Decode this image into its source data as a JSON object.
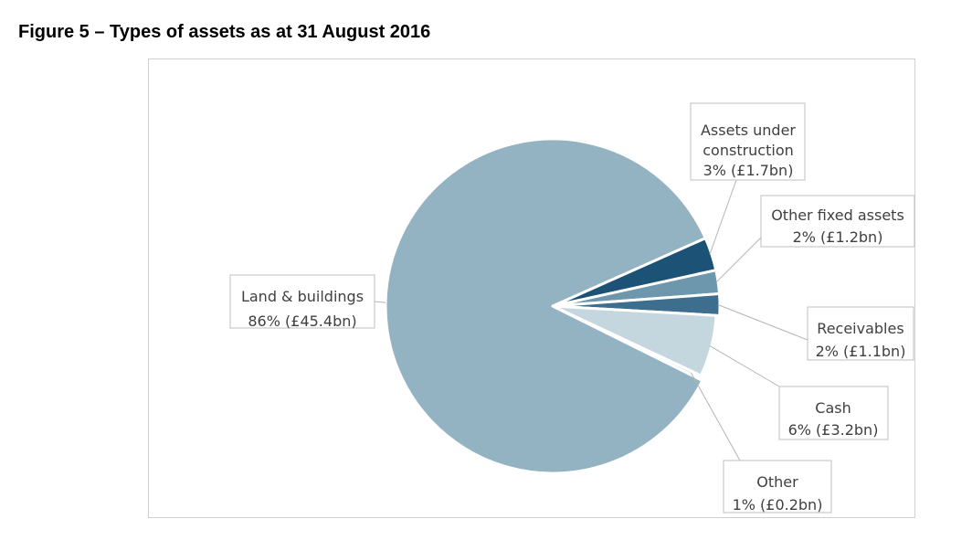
{
  "figure_title": "Figure 5 – Types of assets as at 31 August 2016",
  "chart_data": {
    "type": "pie",
    "title": "",
    "slices": [
      {
        "name": "Assets under construction",
        "percent": 3,
        "label_value": "3% (£1.7bn)",
        "value_bn": 1.7,
        "color": "#1b5276"
      },
      {
        "name": "Other fixed assets",
        "percent": 2,
        "label_value": "2% (£1.2bn)",
        "value_bn": 1.2,
        "color": "#6d97ac"
      },
      {
        "name": "Receivables",
        "percent": 2,
        "label_value": "2% (£1.1bn)",
        "value_bn": 1.1,
        "color": "#3e6e8e"
      },
      {
        "name": "Cash",
        "percent": 6,
        "label_value": "6% (£3.2bn)",
        "value_bn": 3.2,
        "color": "#c4d6de"
      },
      {
        "name": "Other",
        "percent": 1,
        "label_value": "1% (£0.2bn)",
        "value_bn": 0.2,
        "color": "#dde8ed"
      },
      {
        "name": "Land & buildings",
        "percent": 86,
        "label_value": "86% (£45.4bn)",
        "value_bn": 45.4,
        "color": "#94b3c2"
      }
    ],
    "legend": "none"
  }
}
